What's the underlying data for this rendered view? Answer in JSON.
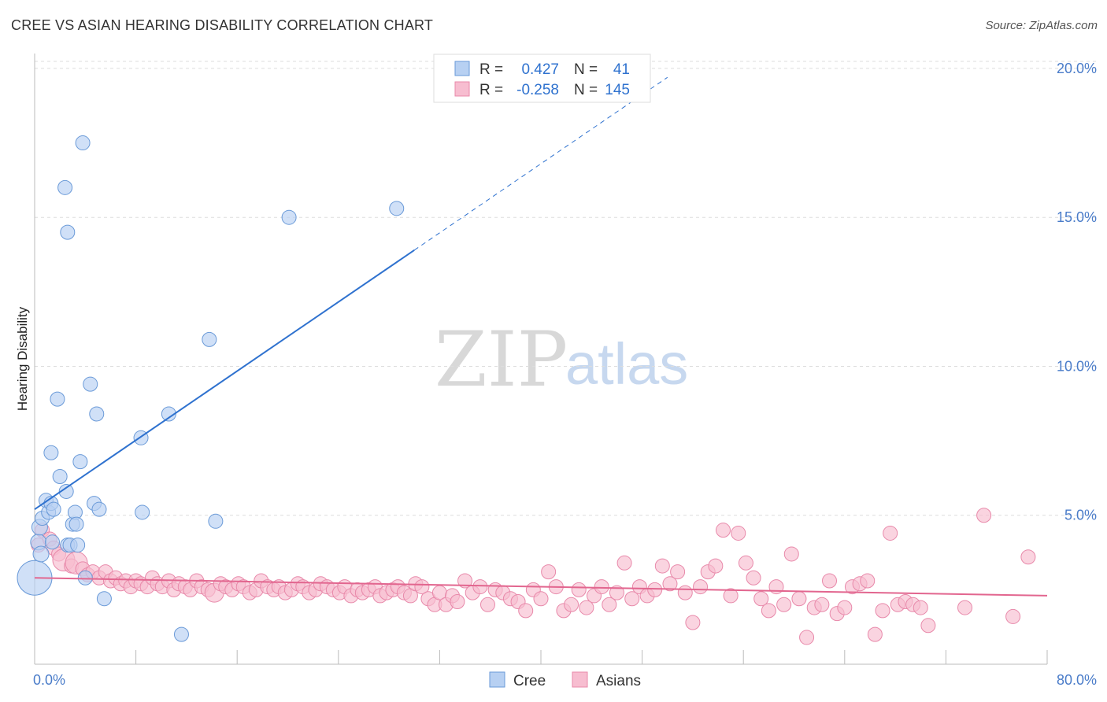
{
  "title": "CREE VS ASIAN HEARING DISABILITY CORRELATION CHART",
  "source": "Source: ZipAtlas.com",
  "watermark": {
    "zip": "ZIP",
    "atlas": "atlas"
  },
  "colors": {
    "cree_fill": "#b7d0f2",
    "cree_stroke": "#6a9ad8",
    "cree_line": "#2f72cf",
    "asian_fill": "#f7bdd0",
    "asian_stroke": "#e889aa",
    "asian_line": "#e2668f",
    "tick_text": "#4a7cc9",
    "grid": "#dddddd"
  },
  "legend_top": {
    "rows": [
      {
        "r_label": "R =",
        "r_value": "0.427",
        "n_label": "N =",
        "n_value": "41"
      },
      {
        "r_label": "R =",
        "r_value": "-0.258",
        "n_label": "N =",
        "n_value": "145"
      }
    ]
  },
  "legend_bottom": [
    "Cree",
    "Asians"
  ],
  "chart_data": {
    "type": "scatter",
    "title": "CREE VS ASIAN HEARING DISABILITY CORRELATION CHART",
    "xlabel": "",
    "ylabel": "Hearing Disability",
    "xlim": [
      0,
      80
    ],
    "ylim": [
      0,
      20.5
    ],
    "x_tick_labels": [
      "0.0%",
      "80.0%"
    ],
    "y_ticks": [
      5,
      10,
      15,
      20
    ],
    "y_tick_labels": [
      "5.0%",
      "10.0%",
      "15.0%",
      "20.0%"
    ],
    "grid": true,
    "legend_position": "top-center",
    "series": [
      {
        "name": "Cree",
        "r": 0.427,
        "n": 41,
        "trend": {
          "x0": 0.0,
          "y0": 5.2,
          "x1": 30.0,
          "y1": 13.9,
          "dashed_to_x": 50.0,
          "dashed_to_y": 19.7
        },
        "points": [
          [
            0.0,
            2.9,
            22
          ],
          [
            0.3,
            4.1,
            10
          ],
          [
            0.4,
            4.6,
            10
          ],
          [
            0.5,
            3.7,
            10
          ],
          [
            0.6,
            4.9,
            9
          ],
          [
            0.9,
            5.5,
            9
          ],
          [
            1.1,
            5.1,
            9
          ],
          [
            1.3,
            5.4,
            9
          ],
          [
            1.4,
            4.1,
            9
          ],
          [
            1.5,
            5.2,
            9
          ],
          [
            1.3,
            7.1,
            9
          ],
          [
            1.8,
            8.9,
            9
          ],
          [
            2.0,
            6.3,
            9
          ],
          [
            2.5,
            5.8,
            9
          ],
          [
            2.4,
            16.0,
            9
          ],
          [
            2.6,
            14.5,
            9
          ],
          [
            2.6,
            4.0,
            9
          ],
          [
            2.8,
            4.0,
            9
          ],
          [
            3.0,
            4.7,
            9
          ],
          [
            3.2,
            5.1,
            9
          ],
          [
            3.3,
            4.7,
            9
          ],
          [
            3.4,
            4.0,
            9
          ],
          [
            3.6,
            6.8,
            9
          ],
          [
            3.8,
            17.5,
            9
          ],
          [
            4.0,
            2.9,
            9
          ],
          [
            4.4,
            9.4,
            9
          ],
          [
            4.7,
            5.4,
            9
          ],
          [
            4.9,
            8.4,
            9
          ],
          [
            5.1,
            5.2,
            9
          ],
          [
            5.5,
            2.2,
            9
          ],
          [
            8.4,
            7.6,
            9
          ],
          [
            8.5,
            5.1,
            9
          ],
          [
            10.6,
            8.4,
            9
          ],
          [
            11.6,
            1.0,
            9
          ],
          [
            13.8,
            10.9,
            9
          ],
          [
            14.3,
            4.8,
            9
          ],
          [
            20.1,
            15.0,
            9
          ],
          [
            28.6,
            15.3,
            9
          ]
        ]
      },
      {
        "name": "Asians",
        "r": -0.258,
        "n": 145,
        "trend": {
          "x0": 0.0,
          "y0": 2.9,
          "x1": 80.0,
          "y1": 2.3
        },
        "points": [
          [
            0.3,
            4.0,
            9
          ],
          [
            0.6,
            4.5,
            9
          ],
          [
            1.2,
            4.2,
            9
          ],
          [
            1.5,
            3.9,
            9
          ],
          [
            1.9,
            3.7,
            9
          ],
          [
            2.3,
            3.5,
            14
          ],
          [
            2.9,
            3.3,
            9
          ],
          [
            3.3,
            3.4,
            14
          ],
          [
            3.8,
            3.2,
            9
          ],
          [
            4.2,
            3.0,
            9
          ],
          [
            4.6,
            3.1,
            9
          ],
          [
            5.1,
            2.9,
            9
          ],
          [
            5.6,
            3.1,
            9
          ],
          [
            6.0,
            2.8,
            9
          ],
          [
            6.4,
            2.9,
            9
          ],
          [
            6.8,
            2.7,
            9
          ],
          [
            7.2,
            2.8,
            9
          ],
          [
            7.6,
            2.6,
            9
          ],
          [
            8.0,
            2.8,
            9
          ],
          [
            8.4,
            2.7,
            9
          ],
          [
            8.9,
            2.6,
            9
          ],
          [
            9.3,
            2.9,
            9
          ],
          [
            9.7,
            2.7,
            9
          ],
          [
            10.1,
            2.6,
            9
          ],
          [
            10.6,
            2.8,
            9
          ],
          [
            11.0,
            2.5,
            9
          ],
          [
            11.4,
            2.7,
            9
          ],
          [
            11.9,
            2.6,
            9
          ],
          [
            12.3,
            2.5,
            9
          ],
          [
            12.8,
            2.8,
            9
          ],
          [
            13.2,
            2.6,
            9
          ],
          [
            13.7,
            2.5,
            9
          ],
          [
            14.2,
            2.4,
            12
          ],
          [
            14.7,
            2.7,
            9
          ],
          [
            15.1,
            2.6,
            9
          ],
          [
            15.6,
            2.5,
            9
          ],
          [
            16.1,
            2.7,
            9
          ],
          [
            16.5,
            2.6,
            9
          ],
          [
            17.0,
            2.4,
            9
          ],
          [
            17.5,
            2.5,
            9
          ],
          [
            17.9,
            2.8,
            9
          ],
          [
            18.4,
            2.6,
            9
          ],
          [
            18.9,
            2.5,
            9
          ],
          [
            19.3,
            2.6,
            9
          ],
          [
            19.8,
            2.4,
            9
          ],
          [
            20.3,
            2.5,
            9
          ],
          [
            20.8,
            2.7,
            9
          ],
          [
            21.2,
            2.6,
            9
          ],
          [
            21.7,
            2.4,
            9
          ],
          [
            22.2,
            2.5,
            9
          ],
          [
            22.6,
            2.7,
            9
          ],
          [
            23.1,
            2.6,
            9
          ],
          [
            23.6,
            2.5,
            9
          ],
          [
            24.1,
            2.4,
            9
          ],
          [
            24.5,
            2.6,
            9
          ],
          [
            25.0,
            2.3,
            9
          ],
          [
            25.5,
            2.5,
            9
          ],
          [
            25.9,
            2.4,
            9
          ],
          [
            26.4,
            2.5,
            9
          ],
          [
            26.9,
            2.6,
            9
          ],
          [
            27.3,
            2.3,
            9
          ],
          [
            27.8,
            2.4,
            9
          ],
          [
            28.3,
            2.5,
            9
          ],
          [
            28.7,
            2.6,
            9
          ],
          [
            29.2,
            2.4,
            9
          ],
          [
            29.7,
            2.3,
            9
          ],
          [
            30.1,
            2.7,
            9
          ],
          [
            30.6,
            2.6,
            9
          ],
          [
            31.1,
            2.2,
            9
          ],
          [
            31.6,
            2.0,
            9
          ],
          [
            32.0,
            2.4,
            9
          ],
          [
            32.5,
            2.0,
            9
          ],
          [
            33.0,
            2.3,
            9
          ],
          [
            33.4,
            2.1,
            9
          ],
          [
            34.0,
            2.8,
            9
          ],
          [
            34.6,
            2.4,
            9
          ],
          [
            35.2,
            2.6,
            9
          ],
          [
            35.8,
            2.0,
            9
          ],
          [
            36.4,
            2.5,
            9
          ],
          [
            37.0,
            2.4,
            9
          ],
          [
            37.6,
            2.2,
            9
          ],
          [
            38.2,
            2.1,
            9
          ],
          [
            38.8,
            1.8,
            9
          ],
          [
            39.4,
            2.5,
            9
          ],
          [
            40.0,
            2.2,
            9
          ],
          [
            40.6,
            3.1,
            9
          ],
          [
            41.2,
            2.6,
            9
          ],
          [
            41.8,
            1.8,
            9
          ],
          [
            42.4,
            2.0,
            9
          ],
          [
            43.0,
            2.5,
            9
          ],
          [
            43.6,
            1.9,
            9
          ],
          [
            44.2,
            2.3,
            9
          ],
          [
            44.8,
            2.6,
            9
          ],
          [
            45.4,
            2.0,
            9
          ],
          [
            46.0,
            2.4,
            9
          ],
          [
            46.6,
            3.4,
            9
          ],
          [
            47.2,
            2.2,
            9
          ],
          [
            47.8,
            2.6,
            9
          ],
          [
            48.4,
            2.3,
            9
          ],
          [
            49.0,
            2.5,
            9
          ],
          [
            49.6,
            3.3,
            9
          ],
          [
            50.2,
            2.7,
            9
          ],
          [
            50.8,
            3.1,
            9
          ],
          [
            51.4,
            2.4,
            9
          ],
          [
            52.0,
            1.4,
            9
          ],
          [
            52.6,
            2.6,
            9
          ],
          [
            53.2,
            3.1,
            9
          ],
          [
            53.8,
            3.3,
            9
          ],
          [
            54.4,
            4.5,
            9
          ],
          [
            55.0,
            2.3,
            9
          ],
          [
            55.6,
            4.4,
            9
          ],
          [
            56.2,
            3.4,
            9
          ],
          [
            56.8,
            2.9,
            9
          ],
          [
            57.4,
            2.2,
            9
          ],
          [
            58.0,
            1.8,
            9
          ],
          [
            58.6,
            2.6,
            9
          ],
          [
            59.2,
            2.0,
            9
          ],
          [
            59.8,
            3.7,
            9
          ],
          [
            60.4,
            2.2,
            9
          ],
          [
            61.0,
            0.9,
            9
          ],
          [
            61.6,
            1.9,
            9
          ],
          [
            62.2,
            2.0,
            9
          ],
          [
            62.8,
            2.8,
            9
          ],
          [
            63.4,
            1.7,
            9
          ],
          [
            64.0,
            1.9,
            9
          ],
          [
            64.6,
            2.6,
            9
          ],
          [
            65.2,
            2.7,
            9
          ],
          [
            65.8,
            2.8,
            9
          ],
          [
            66.4,
            1.0,
            9
          ],
          [
            67.0,
            1.8,
            9
          ],
          [
            67.6,
            4.4,
            9
          ],
          [
            68.2,
            2.0,
            9
          ],
          [
            68.8,
            2.1,
            9
          ],
          [
            69.4,
            2.0,
            9
          ],
          [
            70.0,
            1.9,
            9
          ],
          [
            70.6,
            1.3,
            9
          ],
          [
            75.0,
            5.0,
            9
          ],
          [
            77.3,
            1.6,
            9
          ],
          [
            78.5,
            3.6,
            9
          ],
          [
            73.5,
            1.9,
            9
          ]
        ]
      }
    ]
  }
}
